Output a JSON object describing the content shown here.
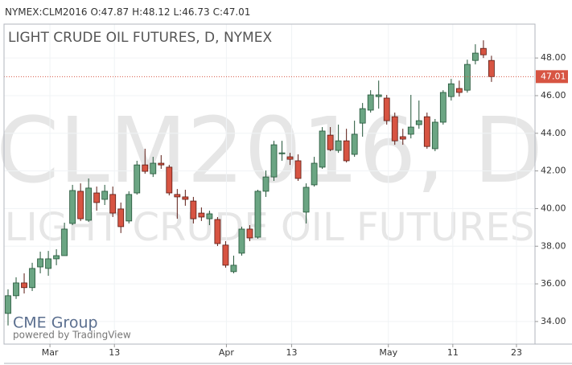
{
  "header": {
    "symbol": "NYMEX:CLM2016",
    "labels": [
      "O:",
      "H:",
      "L:",
      "C:"
    ]
  },
  "chart_data": {
    "type": "candlestick",
    "title": "LIGHT CRUDE OIL FUTURES, D, NYMEX",
    "watermark": [
      "CLM2016, D",
      "LIGHT CRUDE OIL FUTURES"
    ],
    "logo": "CME Group",
    "credit": "powered by TradingView",
    "categories": [
      null,
      null,
      null,
      null,
      null,
      null,
      null,
      null,
      null,
      null,
      null,
      null,
      null,
      null,
      null,
      null,
      null,
      null,
      null,
      null,
      null,
      null,
      null,
      null,
      null,
      null,
      null,
      null,
      null,
      null,
      null,
      null,
      null,
      null,
      null,
      null,
      null,
      null,
      null,
      null,
      null,
      null,
      null,
      null,
      null,
      null,
      null,
      null,
      null,
      null,
      null,
      null,
      null,
      null,
      null,
      null,
      null,
      null,
      null,
      null,
      null
    ],
    "open": [
      34.43,
      35.37,
      36.05,
      35.8,
      36.9,
      36.82,
      37.33,
      37.5,
      39.21,
      40.92,
      39.38,
      40.83,
      40.49,
      40.75,
      39.98,
      39.34,
      40.83,
      42.32,
      41.85,
      42.41,
      42.2,
      40.75,
      40.62,
      40.4,
      39.76,
      39.46,
      39.42,
      38.06,
      36.65,
      37.63,
      38.91,
      38.48,
      40.92,
      41.68,
      42.91,
      42.75,
      42.54,
      39.81,
      41.26,
      42.2,
      43.9,
      43.09,
      43.6,
      42.88,
      44.54,
      45.23,
      45.95,
      45.87,
      44.88,
      43.82,
      43.95,
      44.46,
      44.88,
      43.18,
      44.59,
      45.95,
      46.38,
      46.29,
      47.87,
      48.51,
      47.87
    ],
    "high": [
      35.71,
      36.35,
      36.56,
      37.12,
      37.71,
      37.75,
      37.84,
      39.25,
      41.26,
      41.34,
      41.6,
      41.17,
      41.26,
      41.17,
      40.32,
      40.92,
      42.54,
      43.18,
      42.75,
      42.84,
      42.32,
      41.04,
      41.0,
      40.62,
      40.06,
      39.89,
      39.55,
      38.27,
      37.5,
      39.04,
      39.12,
      41.0,
      42.02,
      43.6,
      43.6,
      42.96,
      42.88,
      41.34,
      42.75,
      44.33,
      44.33,
      44.46,
      44.24,
      44.67,
      45.61,
      46.29,
      46.8,
      46.04,
      45.1,
      44.24,
      46.04,
      45.74,
      45.1,
      44.76,
      46.29,
      46.89,
      46.8,
      47.91,
      48.73,
      48.94,
      48.12
    ],
    "low": [
      33.79,
      35.2,
      35.49,
      35.62,
      36.56,
      36.43,
      36.99,
      37.5,
      39.12,
      39.34,
      39.29,
      39.89,
      40.19,
      39.55,
      38.7,
      39.21,
      40.74,
      41.85,
      41.68,
      42.11,
      40.7,
      39.46,
      40.15,
      39.21,
      39.34,
      39.12,
      38.01,
      36.86,
      36.56,
      37.5,
      38.27,
      38.4,
      40.62,
      41.47,
      42.54,
      42.32,
      41.47,
      39.21,
      41.17,
      42.11,
      43.05,
      42.96,
      42.45,
      42.75,
      43.82,
      45.1,
      45.31,
      44.46,
      43.39,
      43.39,
      43.73,
      44.24,
      43.18,
      43.05,
      44.46,
      45.74,
      45.95,
      46.16,
      47.66,
      48.0,
      46.73
    ],
    "close": [
      35.37,
      36.05,
      35.8,
      36.82,
      37.33,
      37.33,
      37.5,
      38.91,
      40.96,
      39.46,
      41.09,
      40.32,
      40.92,
      39.76,
      39.04,
      40.75,
      42.32,
      41.98,
      42.41,
      42.32,
      40.83,
      40.62,
      40.49,
      39.46,
      39.55,
      39.72,
      38.14,
      36.99,
      36.99,
      38.91,
      38.44,
      40.92,
      41.68,
      43.39,
      42.96,
      42.62,
      41.6,
      41.13,
      42.41,
      44.12,
      43.13,
      43.6,
      42.54,
      43.95,
      45.31,
      46.04,
      46.04,
      44.67,
      43.6,
      43.69,
      44.33,
      44.67,
      43.3,
      44.59,
      46.17,
      46.63,
      46.17,
      47.66,
      48.26,
      48.17,
      47.01
    ],
    "up_color": "#6ba583",
    "down_color": "#d75442",
    "ylim": [
      32.8,
      49.8
    ],
    "yticks": [
      {
        "value": 34,
        "label": "34.00"
      },
      {
        "value": 36,
        "label": "36.00"
      },
      {
        "value": 38,
        "label": "38.00"
      },
      {
        "value": 40,
        "label": "40.00"
      },
      {
        "value": 42,
        "label": "42.00"
      },
      {
        "value": 44,
        "label": "44.00"
      },
      {
        "value": 46,
        "label": "46.00"
      },
      {
        "value": 48,
        "label": "48.00"
      }
    ],
    "xlim": [
      -0.5,
      65.4
    ],
    "xticks": [
      {
        "value": 5.2,
        "label": "Mar"
      },
      {
        "value": 13.2,
        "label": "13"
      },
      {
        "value": 27.1,
        "label": "Apr"
      },
      {
        "value": 35.2,
        "label": "13"
      },
      {
        "value": 47.2,
        "label": "May"
      },
      {
        "value": 55.2,
        "label": "11"
      },
      {
        "value": 63.1,
        "label": "23"
      }
    ],
    "grid": true
  }
}
